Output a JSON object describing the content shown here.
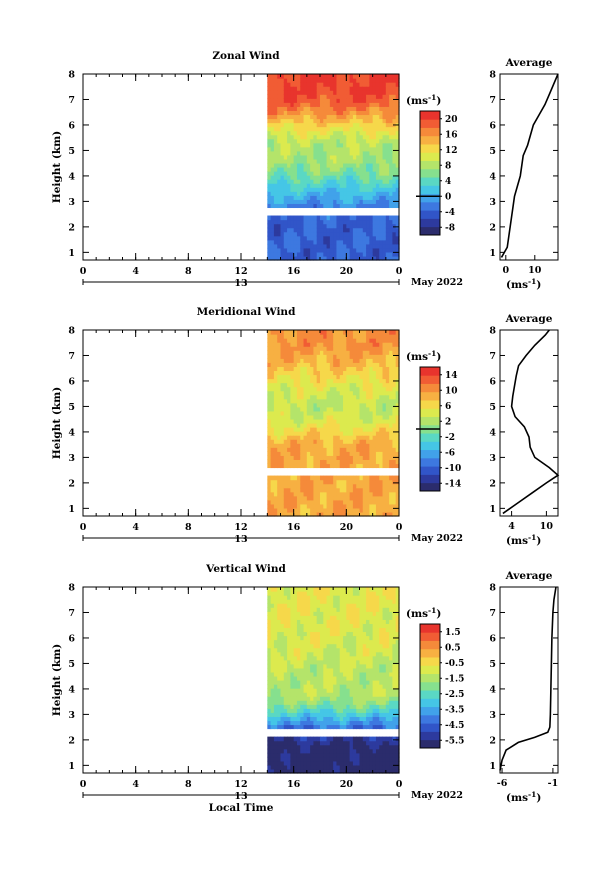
{
  "common": {
    "ylabel": "Height (km)",
    "xlabel": "Local Time",
    "date_label": "May 2022",
    "day_label": "13",
    "x_ticks": [
      "0",
      "4",
      "8",
      "12",
      "16",
      "20",
      "0"
    ],
    "avg_title": "Average",
    "unit": "(ms",
    "unit_sup": "-1",
    "unit_close": ")"
  },
  "chart_data": [
    {
      "type": "heatmap",
      "title": "Zonal Wind",
      "xlabel": "",
      "ylabel": "Height (km)",
      "x_range_hours": [
        0,
        24
      ],
      "data_start_hour": 14,
      "ylim": [
        0.7,
        8
      ],
      "y_ticks": [
        "1",
        "2",
        "3",
        "4",
        "5",
        "6",
        "7",
        "8"
      ],
      "colorbar_ticks": [
        "20",
        "16",
        "12",
        "8",
        "4",
        "0",
        "-4",
        "-8"
      ],
      "colorbar_range": [
        -10,
        22
      ],
      "zero_line": 0,
      "gap_km": [
        2.4,
        2.8
      ],
      "field": {
        "surface_km": 7.4,
        "surface_value": 20,
        "mid_km": 5,
        "mid_value": 8,
        "low_km": 2,
        "low_value": -4
      },
      "profile": {
        "title": "Average",
        "x_ticks": [
          "0",
          "10"
        ],
        "xlim": [
          -2,
          18
        ],
        "heights_km": [
          0.8,
          1.2,
          1.6,
          2.0,
          2.4,
          2.8,
          3.2,
          3.6,
          4.0,
          4.4,
          4.8,
          5.2,
          5.6,
          6.0,
          6.4,
          6.8,
          7.2,
          7.6,
          8.0
        ],
        "values": [
          -1.5,
          0.5,
          1.0,
          1.5,
          2.0,
          2.5,
          3.0,
          4.0,
          5.0,
          5.5,
          6.0,
          7.5,
          8.5,
          9.5,
          11.5,
          13.5,
          15.0,
          16.5,
          18.0
        ]
      }
    },
    {
      "type": "heatmap",
      "title": "Meridional Wind",
      "xlabel": "",
      "ylabel": "Height (km)",
      "x_range_hours": [
        0,
        24
      ],
      "data_start_hour": 14,
      "ylim": [
        0.7,
        8
      ],
      "y_ticks": [
        "1",
        "2",
        "3",
        "4",
        "5",
        "6",
        "7",
        "8"
      ],
      "colorbar_ticks": [
        "14",
        "10",
        "6",
        "2",
        "-2",
        "-6",
        "-10",
        "-14"
      ],
      "colorbar_range": [
        -16,
        16
      ],
      "zero_line": 0,
      "gap_km": [
        2.3,
        2.6
      ],
      "field": {
        "surface_km": 7.6,
        "surface_value": 10,
        "mid_km": 5,
        "mid_value": 3,
        "low_km": 3.2,
        "low_value": 9
      },
      "profile": {
        "title": "Average",
        "x_ticks": [
          "4",
          "10"
        ],
        "xlim": [
          2,
          12
        ],
        "heights_km": [
          0.8,
          1.2,
          1.6,
          2.0,
          2.3,
          2.6,
          3.0,
          3.4,
          3.8,
          4.2,
          4.6,
          5.0,
          5.4,
          5.8,
          6.2,
          6.6,
          7.0,
          7.4,
          7.8,
          8.0
        ],
        "values": [
          2.5,
          5.0,
          7.5,
          10.0,
          12.0,
          10.5,
          8.0,
          7.2,
          7.0,
          6.2,
          4.6,
          4.0,
          4.2,
          4.5,
          4.8,
          5.2,
          6.5,
          8.0,
          9.8,
          10.5
        ]
      }
    },
    {
      "type": "heatmap",
      "title": "Vertical Wind",
      "xlabel": "Local Time",
      "ylabel": "Height (km)",
      "x_range_hours": [
        0,
        24
      ],
      "data_start_hour": 14,
      "ylim": [
        0.7,
        8
      ],
      "y_ticks": [
        "1",
        "2",
        "3",
        "4",
        "5",
        "6",
        "7",
        "8"
      ],
      "colorbar_ticks": [
        "1.5",
        "0.5",
        "-0.5",
        "-1.5",
        "-2.5",
        "-3.5",
        "-4.5",
        "-5.5"
      ],
      "colorbar_range": [
        -6,
        2
      ],
      "zero_line": null,
      "gap_km": [
        2.1,
        2.4
      ],
      "field": {
        "surface_km": 7,
        "surface_value": -0.8,
        "mid_km": 4,
        "mid_value": -1.4,
        "low_km": 1.5,
        "low_value": -5.8
      },
      "profile": {
        "title": "Average",
        "x_ticks": [
          "-6",
          "-1"
        ],
        "xlim": [
          -6.2,
          -0.5
        ],
        "heights_km": [
          0.8,
          1.2,
          1.6,
          1.9,
          2.1,
          2.3,
          2.5,
          3.0,
          4.0,
          5.0,
          6.0,
          7.0,
          7.5,
          8.0
        ],
        "values": [
          -6.2,
          -6.0,
          -5.6,
          -4.4,
          -2.8,
          -1.5,
          -1.3,
          -1.25,
          -1.2,
          -1.15,
          -1.1,
          -1.0,
          -0.9,
          -0.7
        ]
      }
    }
  ]
}
